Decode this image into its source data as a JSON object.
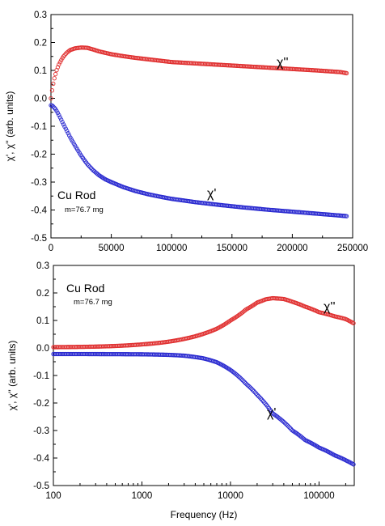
{
  "chart_data": [
    {
      "type": "scatter",
      "x_scale": "linear",
      "xlim": [
        0,
        250000
      ],
      "ylim": [
        -0.5,
        0.3
      ],
      "x_ticks": [
        "0",
        "50000",
        "100000",
        "150000",
        "200000",
        "250000"
      ],
      "y_ticks": [
        "-0.5",
        "-0.4",
        "-0.3",
        "-0.2",
        "-0.1",
        "0.0",
        "0.1",
        "0.2",
        "0.3"
      ],
      "xlabel": "",
      "ylabel": "χ', χ'' (arb. units)",
      "annotations": {
        "sample": "Cu Rod",
        "mass": "m=76.7 mg"
      },
      "series": [
        {
          "name": "χ''",
          "color": "#e03030",
          "x": [
            0,
            1000,
            2000,
            3000,
            5000,
            7000,
            10000,
            13000,
            16000,
            20000,
            25000,
            30000,
            35000,
            40000,
            50000,
            60000,
            70000,
            80000,
            90000,
            100000,
            120000,
            140000,
            160000,
            180000,
            200000,
            220000,
            240000,
            245000
          ],
          "y": [
            0.0,
            0.03,
            0.055,
            0.075,
            0.105,
            0.125,
            0.148,
            0.163,
            0.173,
            0.179,
            0.182,
            0.181,
            0.175,
            0.168,
            0.158,
            0.151,
            0.145,
            0.14,
            0.135,
            0.13,
            0.125,
            0.12,
            0.115,
            0.11,
            0.105,
            0.1,
            0.094,
            0.09
          ]
        },
        {
          "name": "χ'",
          "color": "#2a2ad0",
          "x": [
            0,
            1000,
            2000,
            4000,
            6000,
            8000,
            10000,
            13000,
            16000,
            20000,
            25000,
            30000,
            35000,
            40000,
            45000,
            50000,
            60000,
            70000,
            80000,
            90000,
            100000,
            120000,
            140000,
            160000,
            180000,
            200000,
            220000,
            240000,
            245000
          ],
          "y": [
            -0.025,
            -0.026,
            -0.03,
            -0.04,
            -0.055,
            -0.072,
            -0.09,
            -0.115,
            -0.14,
            -0.17,
            -0.205,
            -0.235,
            -0.258,
            -0.276,
            -0.29,
            -0.3,
            -0.318,
            -0.332,
            -0.343,
            -0.352,
            -0.36,
            -0.372,
            -0.382,
            -0.391,
            -0.399,
            -0.406,
            -0.413,
            -0.42,
            -0.422
          ]
        }
      ]
    },
    {
      "type": "scatter",
      "x_scale": "log",
      "xlim": [
        100,
        250000
      ],
      "ylim": [
        -0.5,
        0.3
      ],
      "x_ticks": [
        "100",
        "1000",
        "10000",
        "100000"
      ],
      "y_ticks": [
        "-0.5",
        "-0.4",
        "-0.3",
        "-0.2",
        "-0.1",
        "0.0",
        "0.1",
        "0.2",
        "0.3"
      ],
      "xlabel": "Frequency (Hz)",
      "ylabel": "χ', χ'' (arb. units)",
      "annotations": {
        "sample": "Cu Rod",
        "mass": "m=76.7 mg"
      },
      "series": [
        {
          "name": "χ''",
          "color": "#e03030",
          "x": [
            100,
            300,
            1000,
            2000,
            3000,
            5000,
            7000,
            10000,
            15000,
            20000,
            25000,
            30000,
            40000,
            50000,
            70000,
            100000,
            150000,
            200000,
            245000
          ],
          "y": [
            0.003,
            0.005,
            0.013,
            0.023,
            0.033,
            0.052,
            0.07,
            0.1,
            0.14,
            0.165,
            0.177,
            0.181,
            0.178,
            0.168,
            0.15,
            0.13,
            0.115,
            0.105,
            0.09
          ]
        },
        {
          "name": "χ'",
          "color": "#2a2ad0",
          "x": [
            100,
            1000,
            2000,
            3000,
            5000,
            7000,
            10000,
            15000,
            20000,
            30000,
            50000,
            70000,
            100000,
            150000,
            200000,
            245000
          ],
          "y": [
            -0.022,
            -0.023,
            -0.025,
            -0.028,
            -0.038,
            -0.052,
            -0.08,
            -0.13,
            -0.17,
            -0.238,
            -0.3,
            -0.335,
            -0.362,
            -0.39,
            -0.408,
            -0.423
          ]
        }
      ]
    }
  ]
}
